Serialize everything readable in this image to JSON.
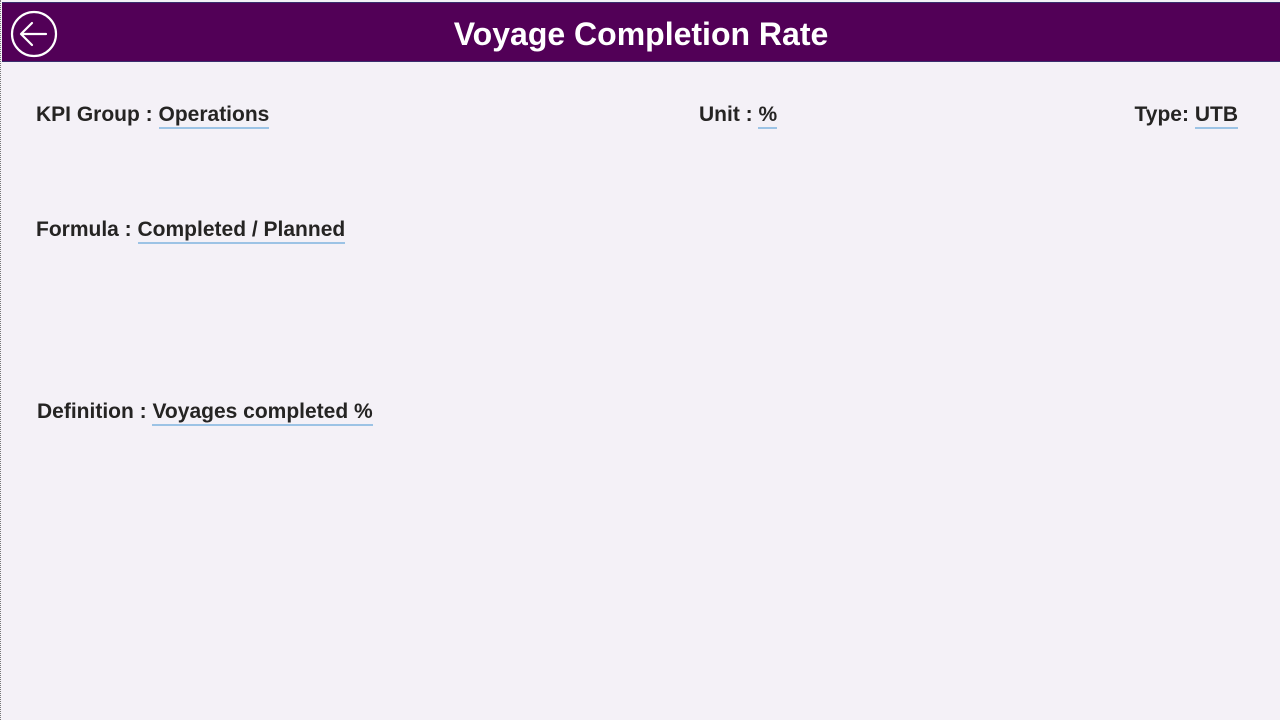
{
  "header": {
    "title": "Voyage Completion Rate",
    "back_icon": "back-arrow-circle-icon"
  },
  "kpi": {
    "group_label": "KPI Group : ",
    "group_value": "Operations",
    "unit_label": "Unit : ",
    "unit_value": "%",
    "type_label": "Type: ",
    "type_value": "UTB",
    "formula_label": "Formula : ",
    "formula_value": "Completed / Planned",
    "definition_label": "Definition : ",
    "definition_value": "Voyages completed %"
  },
  "colors": {
    "header_bg": "#520057",
    "background": "#f4f1f7",
    "underline": "#9cc3e5"
  }
}
